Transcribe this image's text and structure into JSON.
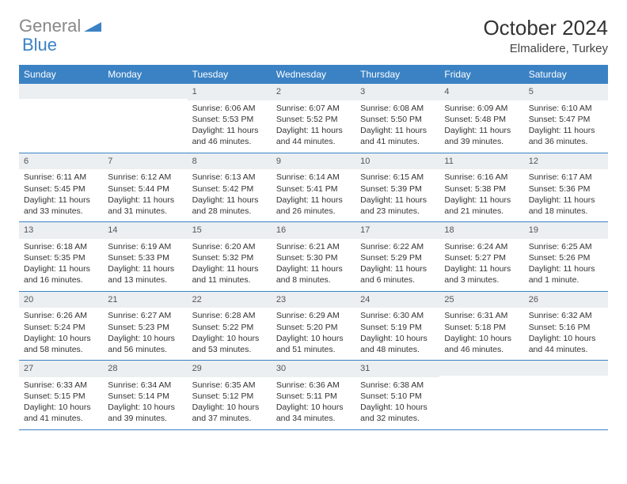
{
  "logo": {
    "text1": "General",
    "text2": "Blue"
  },
  "title": "October 2024",
  "location": "Elmalidere, Turkey",
  "colors": {
    "header_bg": "#3b82c4",
    "header_text": "#ffffff",
    "daynum_bg": "#ebeff2",
    "border": "#3b82c4",
    "body_text": "#333333"
  },
  "dow": [
    "Sunday",
    "Monday",
    "Tuesday",
    "Wednesday",
    "Thursday",
    "Friday",
    "Saturday"
  ],
  "weeks": [
    [
      {
        "num": "",
        "sunrise": "",
        "sunset": "",
        "daylight": ""
      },
      {
        "num": "",
        "sunrise": "",
        "sunset": "",
        "daylight": ""
      },
      {
        "num": "1",
        "sunrise": "Sunrise: 6:06 AM",
        "sunset": "Sunset: 5:53 PM",
        "daylight": "Daylight: 11 hours and 46 minutes."
      },
      {
        "num": "2",
        "sunrise": "Sunrise: 6:07 AM",
        "sunset": "Sunset: 5:52 PM",
        "daylight": "Daylight: 11 hours and 44 minutes."
      },
      {
        "num": "3",
        "sunrise": "Sunrise: 6:08 AM",
        "sunset": "Sunset: 5:50 PM",
        "daylight": "Daylight: 11 hours and 41 minutes."
      },
      {
        "num": "4",
        "sunrise": "Sunrise: 6:09 AM",
        "sunset": "Sunset: 5:48 PM",
        "daylight": "Daylight: 11 hours and 39 minutes."
      },
      {
        "num": "5",
        "sunrise": "Sunrise: 6:10 AM",
        "sunset": "Sunset: 5:47 PM",
        "daylight": "Daylight: 11 hours and 36 minutes."
      }
    ],
    [
      {
        "num": "6",
        "sunrise": "Sunrise: 6:11 AM",
        "sunset": "Sunset: 5:45 PM",
        "daylight": "Daylight: 11 hours and 33 minutes."
      },
      {
        "num": "7",
        "sunrise": "Sunrise: 6:12 AM",
        "sunset": "Sunset: 5:44 PM",
        "daylight": "Daylight: 11 hours and 31 minutes."
      },
      {
        "num": "8",
        "sunrise": "Sunrise: 6:13 AM",
        "sunset": "Sunset: 5:42 PM",
        "daylight": "Daylight: 11 hours and 28 minutes."
      },
      {
        "num": "9",
        "sunrise": "Sunrise: 6:14 AM",
        "sunset": "Sunset: 5:41 PM",
        "daylight": "Daylight: 11 hours and 26 minutes."
      },
      {
        "num": "10",
        "sunrise": "Sunrise: 6:15 AM",
        "sunset": "Sunset: 5:39 PM",
        "daylight": "Daylight: 11 hours and 23 minutes."
      },
      {
        "num": "11",
        "sunrise": "Sunrise: 6:16 AM",
        "sunset": "Sunset: 5:38 PM",
        "daylight": "Daylight: 11 hours and 21 minutes."
      },
      {
        "num": "12",
        "sunrise": "Sunrise: 6:17 AM",
        "sunset": "Sunset: 5:36 PM",
        "daylight": "Daylight: 11 hours and 18 minutes."
      }
    ],
    [
      {
        "num": "13",
        "sunrise": "Sunrise: 6:18 AM",
        "sunset": "Sunset: 5:35 PM",
        "daylight": "Daylight: 11 hours and 16 minutes."
      },
      {
        "num": "14",
        "sunrise": "Sunrise: 6:19 AM",
        "sunset": "Sunset: 5:33 PM",
        "daylight": "Daylight: 11 hours and 13 minutes."
      },
      {
        "num": "15",
        "sunrise": "Sunrise: 6:20 AM",
        "sunset": "Sunset: 5:32 PM",
        "daylight": "Daylight: 11 hours and 11 minutes."
      },
      {
        "num": "16",
        "sunrise": "Sunrise: 6:21 AM",
        "sunset": "Sunset: 5:30 PM",
        "daylight": "Daylight: 11 hours and 8 minutes."
      },
      {
        "num": "17",
        "sunrise": "Sunrise: 6:22 AM",
        "sunset": "Sunset: 5:29 PM",
        "daylight": "Daylight: 11 hours and 6 minutes."
      },
      {
        "num": "18",
        "sunrise": "Sunrise: 6:24 AM",
        "sunset": "Sunset: 5:27 PM",
        "daylight": "Daylight: 11 hours and 3 minutes."
      },
      {
        "num": "19",
        "sunrise": "Sunrise: 6:25 AM",
        "sunset": "Sunset: 5:26 PM",
        "daylight": "Daylight: 11 hours and 1 minute."
      }
    ],
    [
      {
        "num": "20",
        "sunrise": "Sunrise: 6:26 AM",
        "sunset": "Sunset: 5:24 PM",
        "daylight": "Daylight: 10 hours and 58 minutes."
      },
      {
        "num": "21",
        "sunrise": "Sunrise: 6:27 AM",
        "sunset": "Sunset: 5:23 PM",
        "daylight": "Daylight: 10 hours and 56 minutes."
      },
      {
        "num": "22",
        "sunrise": "Sunrise: 6:28 AM",
        "sunset": "Sunset: 5:22 PM",
        "daylight": "Daylight: 10 hours and 53 minutes."
      },
      {
        "num": "23",
        "sunrise": "Sunrise: 6:29 AM",
        "sunset": "Sunset: 5:20 PM",
        "daylight": "Daylight: 10 hours and 51 minutes."
      },
      {
        "num": "24",
        "sunrise": "Sunrise: 6:30 AM",
        "sunset": "Sunset: 5:19 PM",
        "daylight": "Daylight: 10 hours and 48 minutes."
      },
      {
        "num": "25",
        "sunrise": "Sunrise: 6:31 AM",
        "sunset": "Sunset: 5:18 PM",
        "daylight": "Daylight: 10 hours and 46 minutes."
      },
      {
        "num": "26",
        "sunrise": "Sunrise: 6:32 AM",
        "sunset": "Sunset: 5:16 PM",
        "daylight": "Daylight: 10 hours and 44 minutes."
      }
    ],
    [
      {
        "num": "27",
        "sunrise": "Sunrise: 6:33 AM",
        "sunset": "Sunset: 5:15 PM",
        "daylight": "Daylight: 10 hours and 41 minutes."
      },
      {
        "num": "28",
        "sunrise": "Sunrise: 6:34 AM",
        "sunset": "Sunset: 5:14 PM",
        "daylight": "Daylight: 10 hours and 39 minutes."
      },
      {
        "num": "29",
        "sunrise": "Sunrise: 6:35 AM",
        "sunset": "Sunset: 5:12 PM",
        "daylight": "Daylight: 10 hours and 37 minutes."
      },
      {
        "num": "30",
        "sunrise": "Sunrise: 6:36 AM",
        "sunset": "Sunset: 5:11 PM",
        "daylight": "Daylight: 10 hours and 34 minutes."
      },
      {
        "num": "31",
        "sunrise": "Sunrise: 6:38 AM",
        "sunset": "Sunset: 5:10 PM",
        "daylight": "Daylight: 10 hours and 32 minutes."
      },
      {
        "num": "",
        "sunrise": "",
        "sunset": "",
        "daylight": ""
      },
      {
        "num": "",
        "sunrise": "",
        "sunset": "",
        "daylight": ""
      }
    ]
  ]
}
